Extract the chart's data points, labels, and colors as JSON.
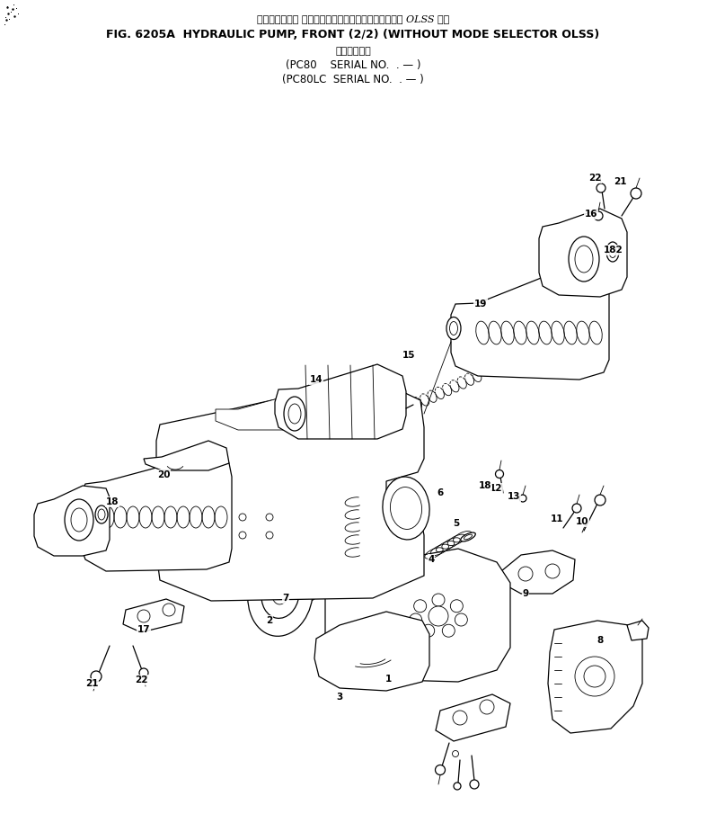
{
  "title_jp": "ハイドロリック ポンプ、フロント　　モードセレクタ OLSS なし",
  "title_main": "FIG. 6205A  HYDRAULIC PUMP, FRONT (2/2) (WITHOUT MODE SELECTOR OLSS)",
  "subtitle_jp": "適用号機　・",
  "serial1": "(PC80    SERIAL NO.  . — )",
  "serial2": "(PC80LC  SERIAL NO.  . — )",
  "bg_color": "#ffffff",
  "line_color": "#000000",
  "fig_width": 7.87,
  "fig_height": 9.05,
  "dpi": 100
}
